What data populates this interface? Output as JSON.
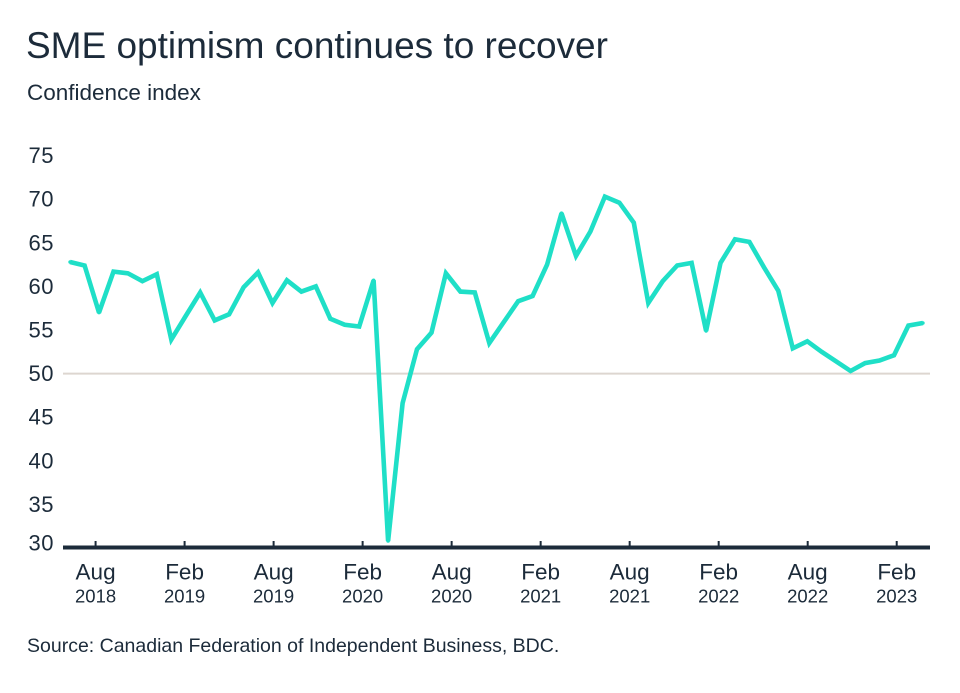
{
  "chart_data": {
    "type": "line",
    "title": "SME optimism continues to recover",
    "subtitle": "Confidence index",
    "xlabel": "",
    "ylabel": "",
    "source": "Source: Canadian Federation of Independent Business, BDC.",
    "ylim": [
      30,
      75
    ],
    "yticks": [
      30,
      35,
      40,
      45,
      50,
      55,
      60,
      65,
      70,
      75
    ],
    "xlim": [
      2018.4,
      2023.27
    ],
    "x_units": "decimal year",
    "xticks": [
      {
        "x": 2018.583,
        "month": "Aug",
        "year": "2018"
      },
      {
        "x": 2019.083,
        "month": "Feb",
        "year": "2019"
      },
      {
        "x": 2019.583,
        "month": "Aug",
        "year": "2019"
      },
      {
        "x": 2020.083,
        "month": "Feb",
        "year": "2020"
      },
      {
        "x": 2020.583,
        "month": "Aug",
        "year": "2020"
      },
      {
        "x": 2021.083,
        "month": "Feb",
        "year": "2021"
      },
      {
        "x": 2021.583,
        "month": "Aug",
        "year": "2021"
      },
      {
        "x": 2022.083,
        "month": "Feb",
        "year": "2022"
      },
      {
        "x": 2022.583,
        "month": "Aug",
        "year": "2022"
      },
      {
        "x": 2023.083,
        "month": "Feb",
        "year": "2023"
      }
    ],
    "grid": false,
    "legend": "none",
    "reference_lines": [
      {
        "axis": "y",
        "value": 50,
        "color": "#ddd6d0"
      }
    ],
    "series": [
      {
        "name": "Confidence index",
        "color": "#1fdfc7",
        "x_start": 2018.44,
        "x_end": 2023.23,
        "spacing": "even",
        "values": [
          62.8,
          62.4,
          57.0,
          61.7,
          61.5,
          60.6,
          61.4,
          53.9,
          56.6,
          59.3,
          56.1,
          56.8,
          59.9,
          61.6,
          58.1,
          60.7,
          59.4,
          60.0,
          56.3,
          55.6,
          55.4,
          60.7,
          30.8,
          46.6,
          52.8,
          54.7,
          61.5,
          59.4,
          59.3,
          53.5,
          55.9,
          58.3,
          58.9,
          62.5,
          68.4,
          63.5,
          66.3,
          70.3,
          69.6,
          67.3,
          58.1,
          60.6,
          62.4,
          62.7,
          54.9,
          62.7,
          65.4,
          65.1,
          62.2,
          59.5,
          52.9,
          53.7,
          52.5,
          51.4,
          50.3,
          51.2,
          51.5,
          52.1,
          55.5,
          55.8
        ]
      }
    ]
  },
  "colors": {
    "text": "#1c2b3a",
    "axis": "#1c2b3a",
    "series": "#1fdfc7",
    "reference_line": "#ddd6d0"
  }
}
